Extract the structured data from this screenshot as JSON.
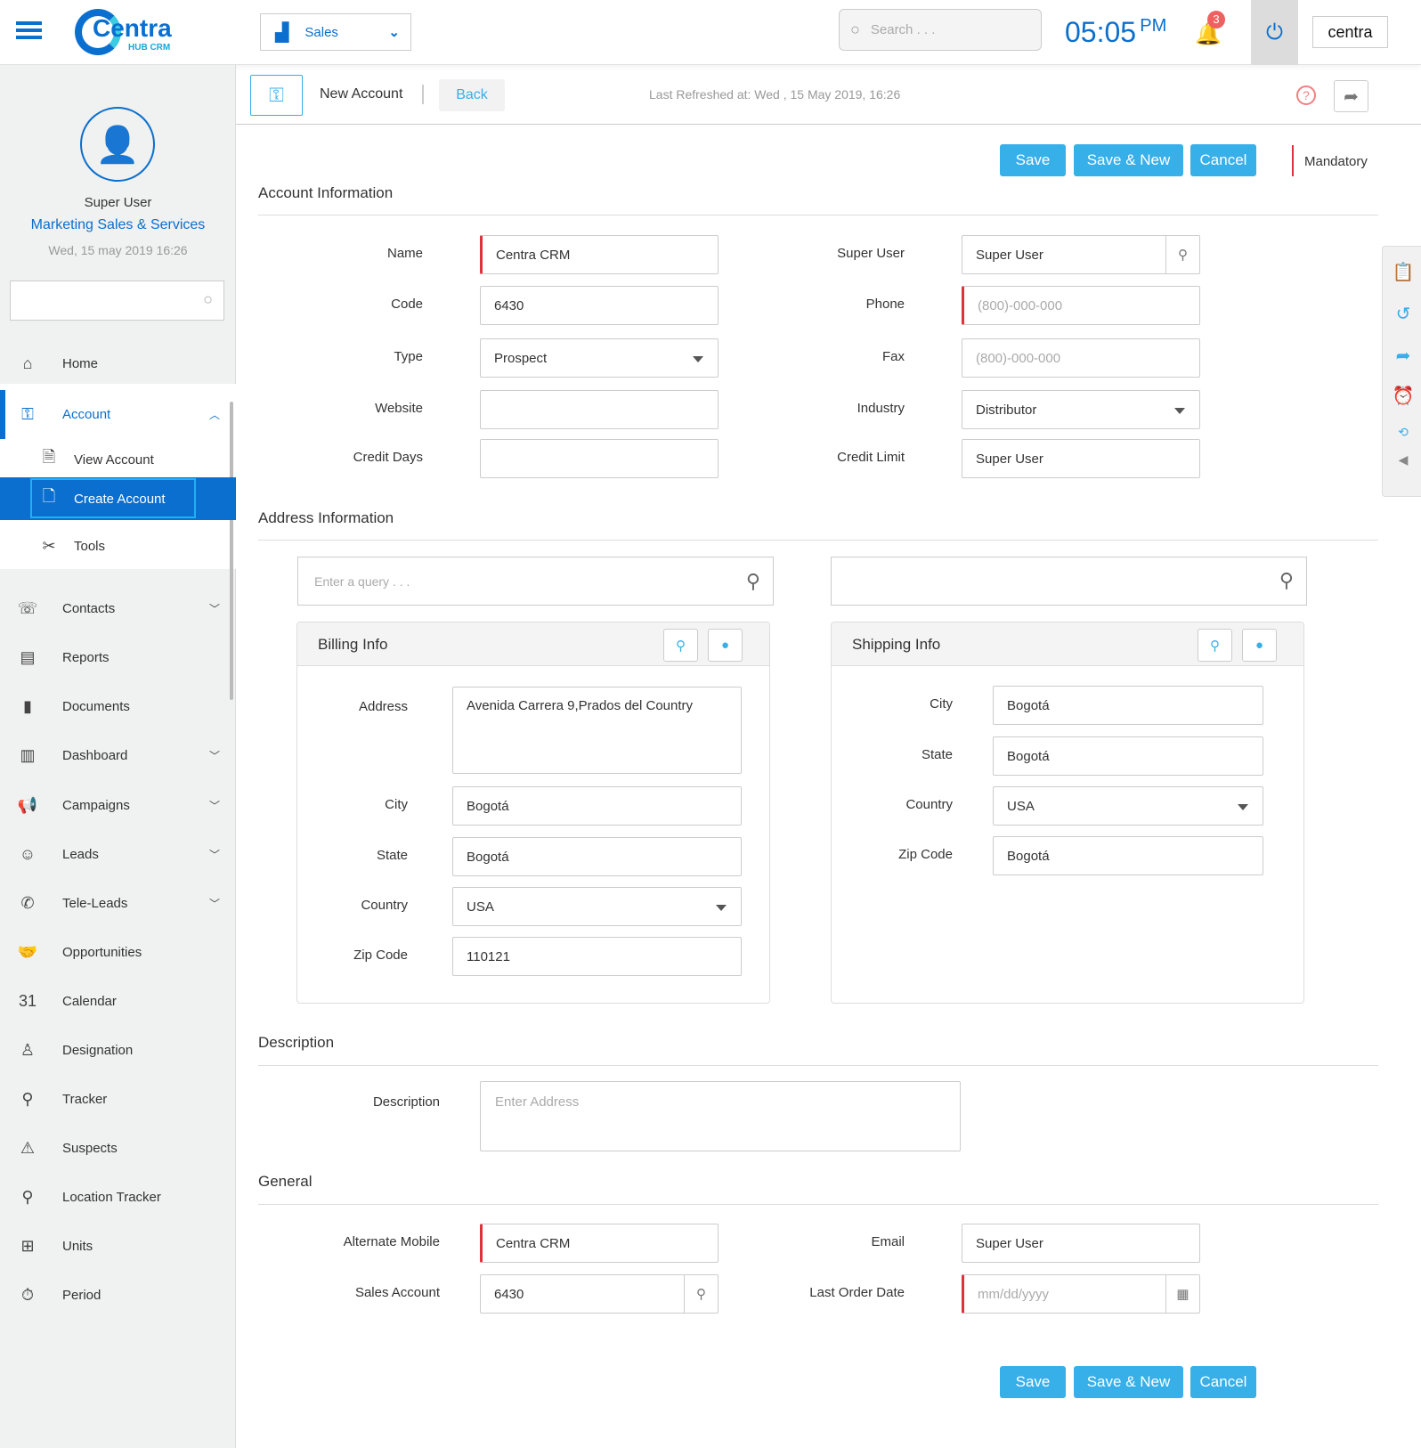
{
  "header": {
    "brand": "Centra",
    "brand_sub": "HUB CRM",
    "module": "Sales",
    "search_placeholder": "Search . . .",
    "time": "05:05",
    "ampm": "PM",
    "notification_count": "3",
    "partner_logo": "centra"
  },
  "toolbar": {
    "title": "New Account",
    "back": "Back",
    "last_refreshed": "Last Refreshed at: Wed , 15 May 2019, 16:26"
  },
  "user": {
    "name": "Super User",
    "role": "Marketing Sales & Services",
    "date": "Wed, 15 may 2019 16:26"
  },
  "sidebar": {
    "items": [
      {
        "label": "Home",
        "icon": "home-icon",
        "glyph": "⌂"
      },
      {
        "label": "Account",
        "icon": "key-icon",
        "glyph": "⚿",
        "active": true,
        "expanded": true
      },
      {
        "label": "View Account",
        "icon": "document-search-icon",
        "glyph": "🗎",
        "sub": true
      },
      {
        "label": "Create Account",
        "icon": "document-add-icon",
        "glyph": "🗋",
        "sub": true,
        "selected": true
      },
      {
        "label": "Tools",
        "icon": "tools-icon",
        "glyph": "✂",
        "sub": true
      },
      {
        "label": "Contacts",
        "icon": "contacts-icon",
        "glyph": "☏",
        "chevron": true
      },
      {
        "label": "Reports",
        "icon": "reports-icon",
        "glyph": "▤"
      },
      {
        "label": "Documents",
        "icon": "documents-icon",
        "glyph": "▮"
      },
      {
        "label": "Dashboard",
        "icon": "dashboard-icon",
        "glyph": "▥",
        "chevron": true
      },
      {
        "label": "Campaigns",
        "icon": "megaphone-icon",
        "glyph": "📢",
        "chevron": true
      },
      {
        "label": "Leads",
        "icon": "people-icon",
        "glyph": "☺",
        "chevron": true
      },
      {
        "label": "Tele-Leads",
        "icon": "phone-icon",
        "glyph": "✆",
        "chevron": true
      },
      {
        "label": "Opportunities",
        "icon": "handshake-icon",
        "glyph": "🤝"
      },
      {
        "label": "Calendar",
        "icon": "calendar-icon",
        "glyph": "31"
      },
      {
        "label": "Designation",
        "icon": "badge-icon",
        "glyph": "♙"
      },
      {
        "label": "Tracker",
        "icon": "location-pin-icon",
        "glyph": "⚲"
      },
      {
        "label": "Suspects",
        "icon": "warning-icon",
        "glyph": "⚠"
      },
      {
        "label": "Location Tracker",
        "icon": "location-search-icon",
        "glyph": "⚲"
      },
      {
        "label": "Units",
        "icon": "units-icon",
        "glyph": "⊞"
      },
      {
        "label": "Period",
        "icon": "stopwatch-icon",
        "glyph": "⏱"
      }
    ]
  },
  "actions": {
    "save": "Save",
    "save_new": "Save & New",
    "cancel": "Cancel",
    "mandatory": "Mandatory"
  },
  "sections": {
    "account": "Account Information",
    "address": "Address Information",
    "description": "Description",
    "general": "General"
  },
  "account": {
    "fields": [
      {
        "label": "Name",
        "value": "Centra CRM",
        "required": true
      },
      {
        "label": "Code",
        "value": "6430"
      },
      {
        "label": "Type",
        "value": "Prospect",
        "select": true
      },
      {
        "label": "Website",
        "value": ""
      },
      {
        "label": "Credit Days",
        "value": ""
      },
      {
        "label": "Super User",
        "value": "Super User",
        "search": true
      },
      {
        "label": "Phone",
        "placeholder": "(800)-000-000",
        "required": true
      },
      {
        "label": "Fax",
        "placeholder": "(800)-000-000"
      },
      {
        "label": "Industry",
        "value": "Distributor",
        "select": true
      },
      {
        "label": "Credit Limit",
        "value": "Super User"
      }
    ]
  },
  "address": {
    "query_placeholder": "Enter a query . . .",
    "billing": {
      "title": "Billing Info",
      "fields": [
        {
          "label": "Address",
          "value": "Avenida Carrera 9,Prados del Country",
          "textarea": true
        },
        {
          "label": "City",
          "value": "Bogotá"
        },
        {
          "label": "State",
          "value": "Bogotá"
        },
        {
          "label": "Country",
          "value": "USA",
          "select": true
        },
        {
          "label": "Zip Code",
          "value": "110121"
        }
      ]
    },
    "shipping": {
      "title": "Shipping Info",
      "fields": [
        {
          "label": "City",
          "value": "Bogotá"
        },
        {
          "label": "State",
          "value": "Bogotá"
        },
        {
          "label": "Country",
          "value": "USA",
          "select": true
        },
        {
          "label": "Zip Code",
          "value": "Bogotá"
        }
      ]
    }
  },
  "description": {
    "label": "Description",
    "placeholder": "Enter Address"
  },
  "general": {
    "fields": [
      {
        "label": "Alternate Mobile",
        "value": "Centra CRM",
        "required": true
      },
      {
        "label": "Sales Account",
        "value": "6430",
        "search": true
      },
      {
        "label": "Email",
        "value": "Super User"
      },
      {
        "label": "Last Order Date",
        "placeholder": "mm/dd/yyyy",
        "required": true,
        "date": true
      }
    ]
  },
  "colors": {
    "accent": "#37afe8",
    "brand": "#0a6fce",
    "required": "#e0303c",
    "badge": "#f06060"
  }
}
